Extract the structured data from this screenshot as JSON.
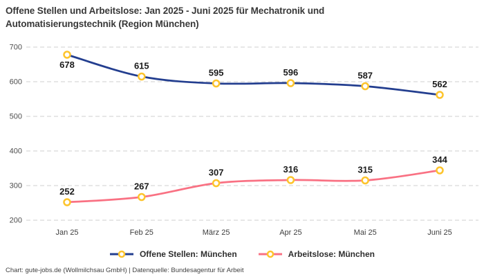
{
  "header": {
    "title_lines": [
      "Offene Stellen und Arbeitslose: Jan 2025 - Juni 2025 für Mechatronik und",
      "Automatisierungstechnik (Region München)"
    ]
  },
  "chart_data": {
    "type": "line",
    "categories": [
      "Jan 25",
      "Feb 25",
      "März 25",
      "Apr 25",
      "Mai 25",
      "Juni 25"
    ],
    "series": [
      {
        "name": "Offene Stellen: München",
        "color": "#233e8f",
        "values": [
          678,
          615,
          595,
          596,
          587,
          562
        ]
      },
      {
        "name": "Arbeitslose: München",
        "color": "#f97183",
        "values": [
          252,
          267,
          307,
          316,
          315,
          344
        ]
      }
    ],
    "yticks": [
      200,
      300,
      400,
      500,
      600,
      700
    ],
    "ylim": [
      200,
      700
    ],
    "grid": "horizontal-dashed",
    "legend_position": "bottom",
    "marker_style": {
      "stroke": "#fdc42c",
      "fill": "#ffffff"
    }
  },
  "colors": {
    "grid_line": "#cfcfcf",
    "y_tick_label": "#4d4d4d",
    "x_tick_label": "#3d3d3d",
    "data_label": "#1b1b1b",
    "marker_stroke": "#fdc42c",
    "marker_fill": "#ffffff"
  },
  "footer": {
    "credit": "Chart: gute-jobs.de (Wollmilchsau GmbH) | Datenquelle: Bundesagentur für Arbeit"
  }
}
